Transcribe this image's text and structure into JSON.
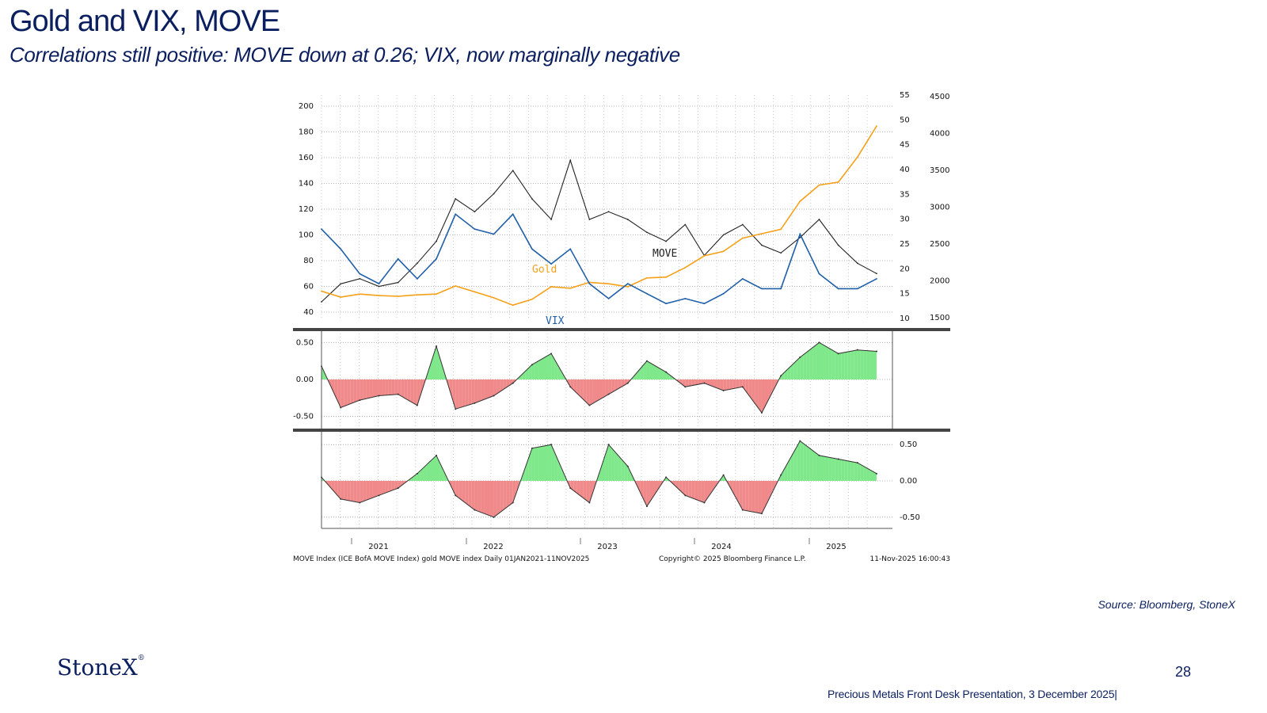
{
  "slide": {
    "title": "Gold and VIX, MOVE",
    "subtitle": "Correlations still positive:  MOVE down at 0.26; VIX, now marginally negative",
    "source": "Source: Bloomberg, StoneX",
    "logo_text": "StoneX",
    "page_number": "28",
    "footer": "Precious Metals Front Desk Presentation, 3 December 2025|"
  },
  "colors": {
    "move": "#222222",
    "vix": "#1f5fa8",
    "gold": "#f5a018",
    "positive": "#7ee88a",
    "negative": "#f08a8a"
  },
  "chart_data": [
    {
      "type": "line",
      "series_labels": [
        "MOVE",
        "Gold",
        "VIX"
      ],
      "axes": {
        "move": {
          "ylim": [
            40,
            200
          ],
          "ticks": [
            "200",
            "180",
            "160",
            "140",
            "120",
            "100",
            "80",
            "60",
            "40"
          ]
        },
        "vix": {
          "ylim": [
            10,
            55
          ],
          "ticks": [
            "55",
            "50",
            "45",
            "40",
            "35",
            "30",
            "25",
            "20",
            "15",
            "10"
          ]
        },
        "gold": {
          "ylim": [
            1500,
            4500
          ],
          "ticks": [
            "4500",
            "4000",
            "3500",
            "3000",
            "2500",
            "2000",
            "1500"
          ]
        }
      },
      "x_dates": [
        "2021-01",
        "2021-03",
        "2021-05",
        "2021-07",
        "2021-09",
        "2021-11",
        "2022-01",
        "2022-03",
        "2022-05",
        "2022-07",
        "2022-09",
        "2022-11",
        "2023-01",
        "2023-03",
        "2023-05",
        "2023-07",
        "2023-09",
        "2023-11",
        "2024-01",
        "2024-03",
        "2024-05",
        "2024-07",
        "2024-09",
        "2024-11",
        "2025-01",
        "2025-03",
        "2025-05",
        "2025-07",
        "2025-09",
        "2025-11"
      ],
      "series": [
        {
          "name": "MOVE",
          "values": [
            48,
            62,
            66,
            60,
            63,
            78,
            95,
            128,
            118,
            132,
            150,
            128,
            112,
            158,
            112,
            118,
            112,
            102,
            95,
            108,
            84,
            100,
            108,
            92,
            86,
            98,
            112,
            92,
            78,
            70
          ]
        },
        {
          "name": "Gold",
          "values": [
            1860,
            1780,
            1820,
            1800,
            1790,
            1810,
            1820,
            1930,
            1850,
            1770,
            1670,
            1750,
            1920,
            1900,
            1980,
            1960,
            1920,
            2040,
            2050,
            2180,
            2340,
            2400,
            2580,
            2640,
            2700,
            3080,
            3300,
            3340,
            3680,
            4100
          ]
        },
        {
          "name": "VIX",
          "values": [
            28,
            24,
            19,
            17,
            22,
            18,
            22,
            31,
            28,
            27,
            31,
            24,
            21,
            24,
            17,
            14,
            17,
            15,
            13,
            14,
            13,
            15,
            18,
            16,
            16,
            27,
            19,
            16,
            16,
            18
          ]
        }
      ]
    },
    {
      "type": "area",
      "ylim": [
        -0.6,
        0.6
      ],
      "ticks": [
        "0.50",
        "0.00",
        "-0.50"
      ],
      "x_dates": [
        "2021-01",
        "2021-03",
        "2021-05",
        "2021-07",
        "2021-09",
        "2021-11",
        "2022-01",
        "2022-03",
        "2022-05",
        "2022-07",
        "2022-09",
        "2022-11",
        "2023-01",
        "2023-03",
        "2023-05",
        "2023-07",
        "2023-09",
        "2023-11",
        "2024-01",
        "2024-03",
        "2024-05",
        "2024-07",
        "2024-09",
        "2024-11",
        "2025-01",
        "2025-03",
        "2025-05",
        "2025-07",
        "2025-09",
        "2025-11"
      ],
      "values": [
        0.18,
        -0.38,
        -0.28,
        -0.22,
        -0.2,
        -0.35,
        0.45,
        -0.4,
        -0.32,
        -0.22,
        -0.05,
        0.2,
        0.35,
        -0.1,
        -0.35,
        -0.2,
        -0.05,
        0.25,
        0.1,
        -0.1,
        -0.05,
        -0.15,
        -0.1,
        -0.45,
        0.05,
        0.3,
        0.5,
        0.35,
        0.4,
        0.38
      ]
    },
    {
      "type": "area",
      "ylim": [
        -0.6,
        0.6
      ],
      "ticks": [
        "0.50",
        "0.00",
        "-0.50"
      ],
      "x_dates": [
        "2021-01",
        "2021-03",
        "2021-05",
        "2021-07",
        "2021-09",
        "2021-11",
        "2022-01",
        "2022-03",
        "2022-05",
        "2022-07",
        "2022-09",
        "2022-11",
        "2023-01",
        "2023-03",
        "2023-05",
        "2023-07",
        "2023-09",
        "2023-11",
        "2024-01",
        "2024-03",
        "2024-05",
        "2024-07",
        "2024-09",
        "2024-11",
        "2025-01",
        "2025-03",
        "2025-05",
        "2025-07",
        "2025-09",
        "2025-11"
      ],
      "values": [
        0.05,
        -0.25,
        -0.3,
        -0.2,
        -0.1,
        0.1,
        0.35,
        -0.2,
        -0.4,
        -0.5,
        -0.3,
        0.45,
        0.5,
        -0.1,
        -0.3,
        0.5,
        0.2,
        -0.35,
        0.05,
        -0.2,
        -0.3,
        0.08,
        -0.4,
        -0.45,
        0.08,
        0.55,
        0.35,
        0.3,
        0.25,
        0.1
      ]
    }
  ],
  "x_axis": {
    "years": [
      "2021",
      "2022",
      "2023",
      "2024",
      "2025"
    ]
  },
  "chart_footer": {
    "left": "MOVE Index (ICE BofA MOVE Index) gold MOVE index Daily 01JAN2021-11NOV2025",
    "center": "Copyright© 2025 Bloomberg Finance L.P.",
    "right": "11-Nov-2025 16:00:43"
  }
}
